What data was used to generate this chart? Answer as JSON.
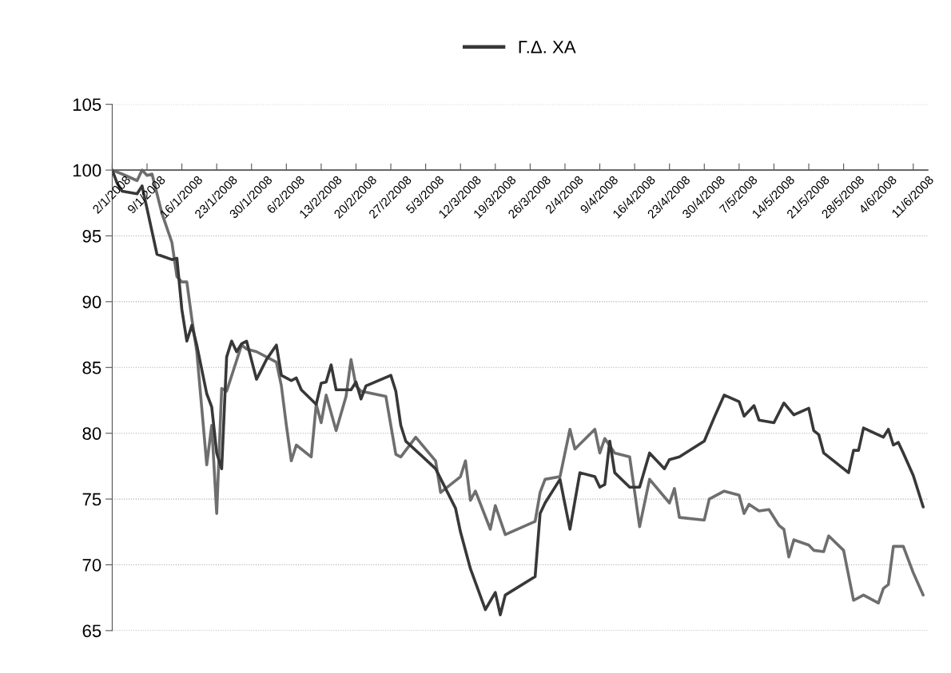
{
  "chart_data": {
    "type": "line",
    "xlim": [
      "2008-01-02",
      "2008-06-14"
    ],
    "xticks": [
      {
        "value": "2008-01-02",
        "label": "2/1/2008"
      },
      {
        "value": "2008-01-09",
        "label": "9/1/2008"
      },
      {
        "value": "2008-01-16",
        "label": "16/1/2008"
      },
      {
        "value": "2008-01-23",
        "label": "23/1/2008"
      },
      {
        "value": "2008-01-30",
        "label": "30/1/2008"
      },
      {
        "value": "2008-02-06",
        "label": "6/2/2008"
      },
      {
        "value": "2008-02-13",
        "label": "13/2/2008"
      },
      {
        "value": "2008-02-20",
        "label": "20/2/2008"
      },
      {
        "value": "2008-02-27",
        "label": "27/2/2008"
      },
      {
        "value": "2008-03-05",
        "label": "5/3/2008"
      },
      {
        "value": "2008-03-12",
        "label": "12/3/2008"
      },
      {
        "value": "2008-03-19",
        "label": "19/3/2008"
      },
      {
        "value": "2008-03-26",
        "label": "26/3/2008"
      },
      {
        "value": "2008-04-02",
        "label": "2/4/2008"
      },
      {
        "value": "2008-04-09",
        "label": "9/4/2008"
      },
      {
        "value": "2008-04-16",
        "label": "16/4/2008"
      },
      {
        "value": "2008-04-23",
        "label": "23/4/2008"
      },
      {
        "value": "2008-04-30",
        "label": "30/4/2008"
      },
      {
        "value": "2008-05-07",
        "label": "7/5/2008"
      },
      {
        "value": "2008-05-14",
        "label": "14/5/2008"
      },
      {
        "value": "2008-05-21",
        "label": "21/5/2008"
      },
      {
        "value": "2008-05-28",
        "label": "28/5/2008"
      },
      {
        "value": "2008-06-04",
        "label": "4/6/2008"
      },
      {
        "value": "2008-06-11",
        "label": "11/6/2008"
      }
    ],
    "ylim": [
      65,
      105
    ],
    "yticks": [
      65,
      70,
      75,
      80,
      85,
      90,
      95,
      100,
      105
    ],
    "ref_lines": [
      {
        "axis": "y",
        "value": 100,
        "color": "#555555"
      }
    ],
    "grid": "y",
    "legend": "top",
    "line_style": "solid",
    "marker": "none",
    "series": [
      {
        "color": "#6e6e6e",
        "x": [
          "2008-01-02",
          "2008-01-04",
          "2008-01-07",
          "2008-01-08",
          "2008-01-09",
          "2008-01-10",
          "2008-01-12",
          "2008-01-14",
          "2008-01-15",
          "2008-01-16",
          "2008-01-17",
          "2008-01-18",
          "2008-01-19",
          "2008-01-21",
          "2008-01-22",
          "2008-01-23",
          "2008-01-24",
          "2008-01-25",
          "2008-01-28",
          "2008-01-29",
          "2008-01-31",
          "2008-02-04",
          "2008-02-05",
          "2008-02-06",
          "2008-02-07",
          "2008-02-08",
          "2008-02-11",
          "2008-02-12",
          "2008-02-13",
          "2008-02-14",
          "2008-02-16",
          "2008-02-18",
          "2008-02-19",
          "2008-02-20",
          "2008-02-21",
          "2008-02-26",
          "2008-02-28",
          "2008-02-29",
          "2008-03-03",
          "2008-03-07",
          "2008-03-08",
          "2008-03-12",
          "2008-03-13",
          "2008-03-14",
          "2008-03-15",
          "2008-03-18",
          "2008-03-19",
          "2008-03-21",
          "2008-03-27",
          "2008-03-28",
          "2008-03-29",
          "2008-04-01",
          "2008-04-03",
          "2008-04-04",
          "2008-04-08",
          "2008-04-09",
          "2008-04-10",
          "2008-04-12",
          "2008-04-15",
          "2008-04-17",
          "2008-04-19",
          "2008-04-23",
          "2008-04-24",
          "2008-04-25",
          "2008-04-30",
          "2008-05-01",
          "2008-05-04",
          "2008-05-07",
          "2008-05-08",
          "2008-05-09",
          "2008-05-11",
          "2008-05-13",
          "2008-05-15",
          "2008-05-16",
          "2008-05-17",
          "2008-05-18",
          "2008-05-21",
          "2008-05-22",
          "2008-05-24",
          "2008-05-25",
          "2008-05-28",
          "2008-05-30",
          "2008-06-01",
          "2008-06-04",
          "2008-06-05",
          "2008-06-06",
          "2008-06-07",
          "2008-06-09",
          "2008-06-11",
          "2008-06-13"
        ],
        "values": [
          100.0,
          99.7,
          99.2,
          100.0,
          99.6,
          99.7,
          96.7,
          94.5,
          91.9,
          91.5,
          91.5,
          88.7,
          86.2,
          77.6,
          80.6,
          73.9,
          83.4,
          83.2,
          86.7,
          86.4,
          86.2,
          85.4,
          83.6,
          80.6,
          77.9,
          79.1,
          78.2,
          82.2,
          80.8,
          82.9,
          80.2,
          82.8,
          85.6,
          83.6,
          83.2,
          82.8,
          78.4,
          78.2,
          79.7,
          77.9,
          75.5,
          76.7,
          77.9,
          74.9,
          75.6,
          72.7,
          74.5,
          72.3,
          73.3,
          75.5,
          76.5,
          76.7,
          80.3,
          78.8,
          80.3,
          78.5,
          79.6,
          78.5,
          78.2,
          72.9,
          76.5,
          74.7,
          75.8,
          73.6,
          73.4,
          75.0,
          75.6,
          75.3,
          73.9,
          74.6,
          74.1,
          74.2,
          73.0,
          72.7,
          70.6,
          71.9,
          71.5,
          71.1,
          71.0,
          72.2,
          71.1,
          67.3,
          67.7,
          67.1,
          68.2,
          68.5,
          71.4,
          71.4,
          69.4,
          67.7
        ]
      },
      {
        "name": "Γ.Δ. ΧΑ",
        "color": "#383838",
        "x": [
          "2008-01-02",
          "2008-01-03",
          "2008-01-04",
          "2008-01-07",
          "2008-01-08",
          "2008-01-11",
          "2008-01-14",
          "2008-01-15",
          "2008-01-16",
          "2008-01-17",
          "2008-01-18",
          "2008-01-19",
          "2008-01-21",
          "2008-01-22",
          "2008-01-23",
          "2008-01-24",
          "2008-01-25",
          "2008-01-26",
          "2008-01-27",
          "2008-01-28",
          "2008-01-29",
          "2008-01-31",
          "2008-02-02",
          "2008-02-04",
          "2008-02-05",
          "2008-02-07",
          "2008-02-08",
          "2008-02-09",
          "2008-02-12",
          "2008-02-13",
          "2008-02-14",
          "2008-02-15",
          "2008-02-16",
          "2008-02-19",
          "2008-02-20",
          "2008-02-21",
          "2008-02-22",
          "2008-02-27",
          "2008-02-28",
          "2008-02-29",
          "2008-03-01",
          "2008-03-07",
          "2008-03-11",
          "2008-03-12",
          "2008-03-14",
          "2008-03-17",
          "2008-03-19",
          "2008-03-20",
          "2008-03-21",
          "2008-03-27",
          "2008-03-28",
          "2008-03-29",
          "2008-04-01",
          "2008-04-03",
          "2008-04-05",
          "2008-04-08",
          "2008-04-09",
          "2008-04-10",
          "2008-04-11",
          "2008-04-12",
          "2008-04-15",
          "2008-04-17",
          "2008-04-19",
          "2008-04-22",
          "2008-04-23",
          "2008-04-25",
          "2008-04-30",
          "2008-05-02",
          "2008-05-04",
          "2008-05-07",
          "2008-05-08",
          "2008-05-10",
          "2008-05-11",
          "2008-05-14",
          "2008-05-16",
          "2008-05-18",
          "2008-05-21",
          "2008-05-22",
          "2008-05-23",
          "2008-05-24",
          "2008-05-29",
          "2008-05-30",
          "2008-05-31",
          "2008-06-01",
          "2008-06-05",
          "2008-06-06",
          "2008-06-07",
          "2008-06-08",
          "2008-06-09",
          "2008-06-11",
          "2008-06-13"
        ],
        "values": [
          100.0,
          99.0,
          98.4,
          98.2,
          98.8,
          93.6,
          93.2,
          93.3,
          89.4,
          87.0,
          88.2,
          86.7,
          83.0,
          82.0,
          78.5,
          77.3,
          85.8,
          87.0,
          86.2,
          86.8,
          87.0,
          84.1,
          85.6,
          86.7,
          84.4,
          84.0,
          84.2,
          83.3,
          82.2,
          83.8,
          83.9,
          85.2,
          83.3,
          83.3,
          83.9,
          82.6,
          83.6,
          84.4,
          83.2,
          80.6,
          79.4,
          77.3,
          74.3,
          72.5,
          69.7,
          66.6,
          67.9,
          66.2,
          67.7,
          69.1,
          73.9,
          74.7,
          76.5,
          72.7,
          77.0,
          76.7,
          75.9,
          76.1,
          79.4,
          77.0,
          75.9,
          75.9,
          78.5,
          77.3,
          78.0,
          78.2,
          79.4,
          81.2,
          82.9,
          82.4,
          81.3,
          82.1,
          81.0,
          80.8,
          82.3,
          81.4,
          81.9,
          80.2,
          79.9,
          78.5,
          77.0,
          78.7,
          78.7,
          80.4,
          79.7,
          80.3,
          79.1,
          79.3,
          78.5,
          76.8,
          74.4
        ]
      }
    ]
  }
}
